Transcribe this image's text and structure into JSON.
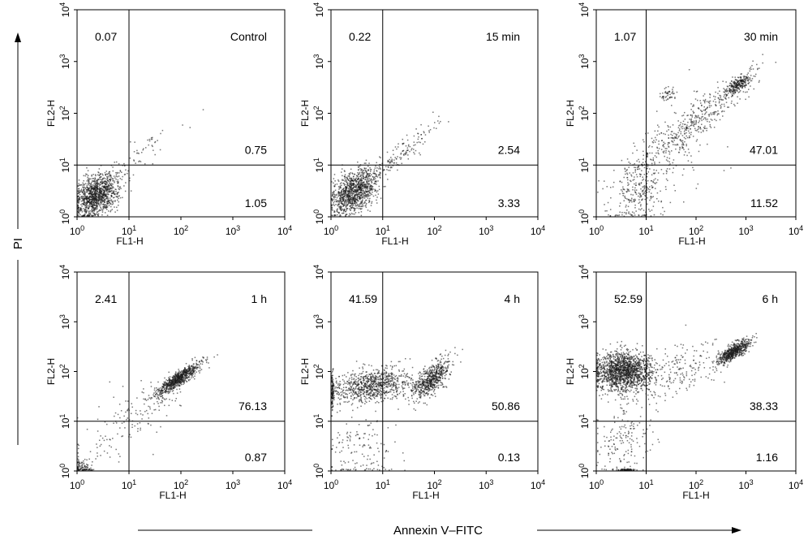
{
  "figure": {
    "y_label": "PI",
    "x_label": "Annexin V–FITC"
  },
  "colors": {
    "dots": "#1a1a1a",
    "axes": "#000000",
    "background": "#ffffff"
  },
  "chart_data": [
    {
      "type": "scatter",
      "title": "Control",
      "xlabel": "FL1-H",
      "ylabel": "FL2-H",
      "xscale": "log",
      "yscale": "log",
      "xlim": [
        1,
        10000
      ],
      "ylim": [
        1,
        10000
      ],
      "tick_base": "10",
      "tick_exponents": [
        "0",
        "1",
        "2",
        "3",
        "4"
      ],
      "grid": false,
      "legend": "none",
      "quadrant_gate": {
        "x": 10,
        "y": 10
      },
      "quadrant_values": {
        "upper_left": "0.07",
        "upper_right": "0.75",
        "lower_right": "1.05"
      }
    },
    {
      "type": "scatter",
      "title": "15 min",
      "xlabel": "FL1-H",
      "ylabel": "FL2-H",
      "xscale": "log",
      "yscale": "log",
      "xlim": [
        1,
        10000
      ],
      "ylim": [
        1,
        10000
      ],
      "tick_base": "10",
      "tick_exponents": [
        "0",
        "1",
        "2",
        "3",
        "4"
      ],
      "grid": false,
      "legend": "none",
      "quadrant_gate": {
        "x": 10,
        "y": 10
      },
      "quadrant_values": {
        "upper_left": "0.22",
        "upper_right": "2.54",
        "lower_right": "3.33"
      }
    },
    {
      "type": "scatter",
      "title": "30 min",
      "xlabel": "FL1-H",
      "ylabel": "FL2-H",
      "xscale": "log",
      "yscale": "log",
      "xlim": [
        1,
        10000
      ],
      "ylim": [
        1,
        10000
      ],
      "tick_base": "10",
      "tick_exponents": [
        "0",
        "1",
        "2",
        "3",
        "4"
      ],
      "grid": false,
      "legend": "none",
      "quadrant_gate": {
        "x": 10,
        "y": 10
      },
      "quadrant_values": {
        "upper_left": "1.07",
        "upper_right": "47.01",
        "lower_right": "11.52"
      }
    },
    {
      "type": "scatter",
      "title": "1 h",
      "xlabel": "FL1-H",
      "ylabel": "FL2-H",
      "xscale": "log",
      "yscale": "log",
      "xlim": [
        1,
        10000
      ],
      "ylim": [
        1,
        10000
      ],
      "tick_base": "10",
      "tick_exponents": [
        "0",
        "1",
        "2",
        "3",
        "4"
      ],
      "grid": false,
      "legend": "none",
      "quadrant_gate": {
        "x": 10,
        "y": 10
      },
      "quadrant_values": {
        "upper_left": "2.41",
        "upper_right": "76.13",
        "lower_right": "0.87"
      }
    },
    {
      "type": "scatter",
      "title": "4 h",
      "xlabel": "FL1-H",
      "ylabel": "FL2-H",
      "xscale": "log",
      "yscale": "log",
      "xlim": [
        1,
        10000
      ],
      "ylim": [
        1,
        10000
      ],
      "tick_base": "10",
      "tick_exponents": [
        "0",
        "1",
        "2",
        "3",
        "4"
      ],
      "grid": false,
      "legend": "none",
      "quadrant_gate": {
        "x": 10,
        "y": 10
      },
      "quadrant_values": {
        "upper_left": "41.59",
        "upper_right": "50.86",
        "lower_right": "0.13"
      }
    },
    {
      "type": "scatter",
      "title": "6 h",
      "xlabel": "FL1-H",
      "ylabel": "FL2-H",
      "xscale": "log",
      "yscale": "log",
      "xlim": [
        1,
        10000
      ],
      "ylim": [
        1,
        10000
      ],
      "tick_base": "10",
      "tick_exponents": [
        "0",
        "1",
        "2",
        "3",
        "4"
      ],
      "grid": false,
      "legend": "none",
      "quadrant_gate": {
        "x": 10,
        "y": 10
      },
      "quadrant_values": {
        "upper_left": "52.59",
        "upper_right": "38.33",
        "lower_right": "1.16"
      }
    }
  ]
}
